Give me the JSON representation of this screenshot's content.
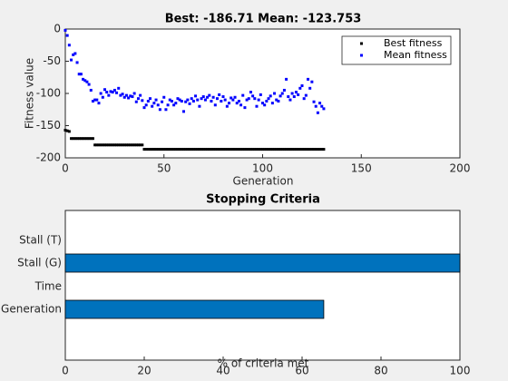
{
  "chart_data": [
    {
      "type": "scatter",
      "title": "Best: -186.71 Mean: -123.753",
      "x_label": "Generation",
      "y_label": "Fitness value",
      "x": [
        0,
        1,
        2,
        3,
        4,
        5,
        6,
        7,
        8,
        9,
        10,
        11,
        12,
        13,
        14,
        15,
        16,
        17,
        18,
        19,
        20,
        21,
        22,
        23,
        24,
        25,
        26,
        27,
        28,
        29,
        30,
        31,
        32,
        33,
        34,
        35,
        36,
        37,
        38,
        39,
        40,
        41,
        42,
        43,
        44,
        45,
        46,
        47,
        48,
        49,
        50,
        51,
        52,
        53,
        54,
        55,
        56,
        57,
        58,
        59,
        60,
        61,
        62,
        63,
        64,
        65,
        66,
        67,
        68,
        69,
        70,
        71,
        72,
        73,
        74,
        75,
        76,
        77,
        78,
        79,
        80,
        81,
        82,
        83,
        84,
        85,
        86,
        87,
        88,
        89,
        90,
        91,
        92,
        93,
        94,
        95,
        96,
        97,
        98,
        99,
        100,
        101,
        102,
        103,
        104,
        105,
        106,
        107,
        108,
        109,
        110,
        111,
        112,
        113,
        114,
        115,
        116,
        117,
        118,
        119,
        120,
        121,
        122,
        123,
        124,
        125,
        126,
        127,
        128,
        129,
        130,
        131
      ],
      "series": [
        {
          "name": "Best fitness",
          "color": "#000000",
          "values": [
            -157,
            -158,
            -159,
            -170,
            -170,
            -170,
            -170,
            -170,
            -170,
            -170,
            -170,
            -170,
            -170,
            -170,
            -170,
            -180,
            -180,
            -180,
            -180,
            -180,
            -180,
            -180,
            -180,
            -180,
            -180,
            -180,
            -180,
            -180,
            -180,
            -180,
            -180,
            -180,
            -180,
            -180,
            -180,
            -180,
            -180,
            -180,
            -180,
            -180,
            -186.71,
            -186.71,
            -186.71,
            -186.71,
            -186.71,
            -186.71,
            -186.71,
            -186.71,
            -186.71,
            -186.71,
            -186.71,
            -186.71,
            -186.71,
            -186.71,
            -186.71,
            -186.71,
            -186.71,
            -186.71,
            -186.71,
            -186.71,
            -186.71,
            -186.71,
            -186.71,
            -186.71,
            -186.71,
            -186.71,
            -186.71,
            -186.71,
            -186.71,
            -186.71,
            -186.71,
            -186.71,
            -186.71,
            -186.71,
            -186.71,
            -186.71,
            -186.71,
            -186.71,
            -186.71,
            -186.71,
            -186.71,
            -186.71,
            -186.71,
            -186.71,
            -186.71,
            -186.71,
            -186.71,
            -186.71,
            -186.71,
            -186.71,
            -186.71,
            -186.71,
            -186.71,
            -186.71,
            -186.71,
            -186.71,
            -186.71,
            -186.71,
            -186.71,
            -186.71,
            -186.71,
            -186.71,
            -186.71,
            -186.71,
            -186.71,
            -186.71,
            -186.71,
            -186.71,
            -186.71,
            -186.71,
            -186.71,
            -186.71,
            -186.71,
            -186.71,
            -186.71,
            -186.71,
            -186.71,
            -186.71,
            -186.71,
            -186.71,
            -186.71,
            -186.71,
            -186.71,
            -186.71,
            -186.71,
            -186.71,
            -186.71,
            -186.71,
            -186.71,
            -186.71,
            -186.71,
            -186.71
          ]
        },
        {
          "name": "Mean fitness",
          "color": "#0000ff",
          "values": [
            -2,
            -10,
            -25,
            -48,
            -40,
            -38,
            -52,
            -70,
            -70,
            -78,
            -80,
            -82,
            -86,
            -95,
            -112,
            -110,
            -110,
            -115,
            -100,
            -106,
            -94,
            -98,
            -103,
            -97,
            -98,
            -95,
            -99,
            -92,
            -103,
            -101,
            -106,
            -103,
            -107,
            -104,
            -105,
            -100,
            -113,
            -108,
            -103,
            -111,
            -122,
            -118,
            -112,
            -108,
            -120,
            -115,
            -110,
            -118,
            -125,
            -113,
            -106,
            -125,
            -118,
            -110,
            -112,
            -118,
            -115,
            -108,
            -110,
            -112,
            -128,
            -113,
            -110,
            -116,
            -108,
            -112,
            -104,
            -110,
            -120,
            -108,
            -105,
            -110,
            -106,
            -103,
            -112,
            -106,
            -118,
            -108,
            -102,
            -112,
            -105,
            -110,
            -120,
            -115,
            -107,
            -110,
            -106,
            -115,
            -112,
            -118,
            -103,
            -122,
            -110,
            -108,
            -98,
            -104,
            -108,
            -120,
            -110,
            -102,
            -115,
            -118,
            -112,
            -108,
            -104,
            -115,
            -100,
            -110,
            -112,
            -104,
            -100,
            -95,
            -78,
            -105,
            -110,
            -100,
            -105,
            -98,
            -102,
            -92,
            -88,
            -108,
            -103,
            -78,
            -92,
            -82,
            -113,
            -120,
            -130,
            -115,
            -120,
            -123.753
          ]
        }
      ],
      "xlim": [
        0,
        200
      ],
      "xticks": [
        0,
        50,
        100,
        150,
        200
      ],
      "ylim": [
        -200,
        0
      ],
      "yticks": [
        -200,
        -150,
        -100,
        -50,
        0
      ],
      "legend": "upper right"
    },
    {
      "type": "barh",
      "title": "Stopping Criteria",
      "x_label": "% of criteria met",
      "categories": [
        "Stall (T)",
        "Stall (G)",
        "Time",
        "Generation"
      ],
      "values": [
        0,
        100,
        0,
        65.5
      ],
      "color": "#0072bd",
      "xlim": [
        0,
        100
      ],
      "xticks": [
        0,
        20,
        40,
        60,
        80,
        100
      ]
    }
  ]
}
